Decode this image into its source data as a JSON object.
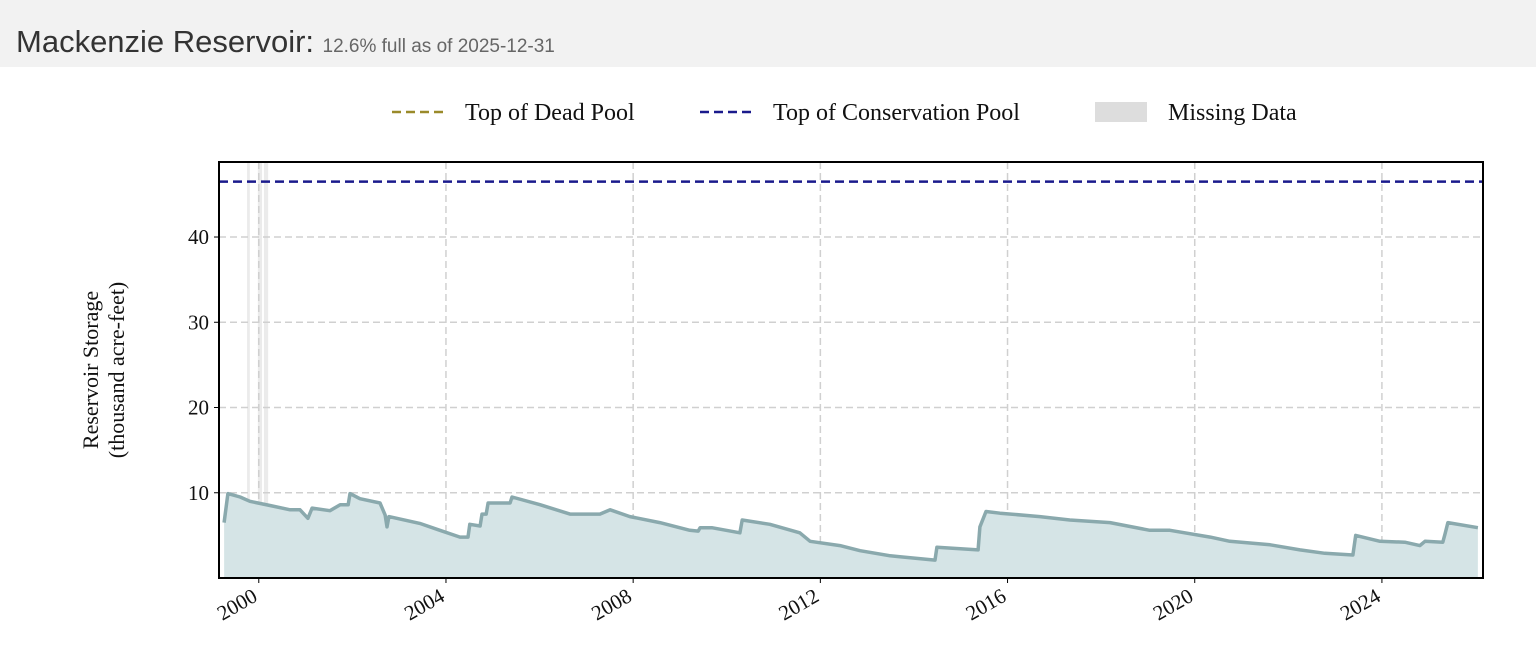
{
  "chart_data": {
    "type": "area",
    "title": "Mackenzie Reservoir:",
    "subtitle": "12.6% full as of 2025-12-31",
    "ylabel": [
      "Reservoir Storage",
      "(thousand acre-feet)"
    ],
    "x": [
      1999.26,
      1999.34,
      1999.6,
      1999.81,
      2000.24,
      2000.67,
      2000.88,
      2001.05,
      2001.14,
      2001.52,
      2001.74,
      2001.91,
      2001.95,
      2002.16,
      2002.59,
      2002.7,
      2002.74,
      2002.78,
      2003.44,
      2003.87,
      2004.3,
      2004.47,
      2004.51,
      2004.73,
      2004.77,
      2004.86,
      2004.9,
      2005.37,
      2005.41,
      2006.01,
      2006.65,
      2007.29,
      2007.51,
      2007.93,
      2008.57,
      2009.21,
      2009.39,
      2009.43,
      2009.68,
      2010.28,
      2010.33,
      2010.92,
      2011.56,
      2011.78,
      2012.42,
      2012.85,
      2013.49,
      2013.7,
      2014.45,
      2014.49,
      2015.37,
      2015.41,
      2015.54,
      2015.84,
      2016.69,
      2017.33,
      2018.19,
      2019.04,
      2019.47,
      2020.33,
      2020.75,
      2021.61,
      2022.25,
      2022.78,
      2023.38,
      2023.44,
      2023.96,
      2024.49,
      2024.81,
      2024.92,
      2025.3,
      2025.35,
      2025.41,
      2026.05
    ],
    "values": [
      6.5,
      9.9,
      9.5,
      9.0,
      8.5,
      8.0,
      8.0,
      7.0,
      8.2,
      7.9,
      8.6,
      8.6,
      9.9,
      9.3,
      8.8,
      7.4,
      6.0,
      7.2,
      6.4,
      5.6,
      4.8,
      4.8,
      6.3,
      6.1,
      7.5,
      7.5,
      8.8,
      8.8,
      9.5,
      8.6,
      7.5,
      7.5,
      8.0,
      7.2,
      6.5,
      5.6,
      5.5,
      5.9,
      5.9,
      5.3,
      6.8,
      6.3,
      5.3,
      4.3,
      3.8,
      3.2,
      2.6,
      2.5,
      2.1,
      3.6,
      3.3,
      6.0,
      7.8,
      7.6,
      7.2,
      6.8,
      6.5,
      5.6,
      5.6,
      4.8,
      4.3,
      3.9,
      3.3,
      2.9,
      2.7,
      5.0,
      4.3,
      4.2,
      3.8,
      4.3,
      4.2,
      5.2,
      6.5,
      5.9
    ],
    "color": "#8aa9ad",
    "fill_color": "#d5e4e6",
    "reference_lines": [
      {
        "name": "Top of Dead Pool",
        "color": "#9a8a2a"
      },
      {
        "name": "Top of Conservation Pool",
        "color": "#1a1a8c",
        "value": 46.5
      }
    ],
    "missing_data": {
      "name": "Missing Data",
      "color": "#dddddd",
      "ranges": [
        [
          1999.75,
          1999.81
        ],
        [
          1999.98,
          2000.07
        ],
        [
          2000.11,
          2000.2
        ]
      ]
    },
    "xlim": [
      1999.15,
      2026.16
    ],
    "xticks": [
      2000,
      2004,
      2008,
      2012,
      2016,
      2020,
      2024
    ],
    "ylim": [
      0,
      48.8
    ],
    "yticks": [
      10,
      20,
      30,
      40
    ],
    "grid": true
  }
}
